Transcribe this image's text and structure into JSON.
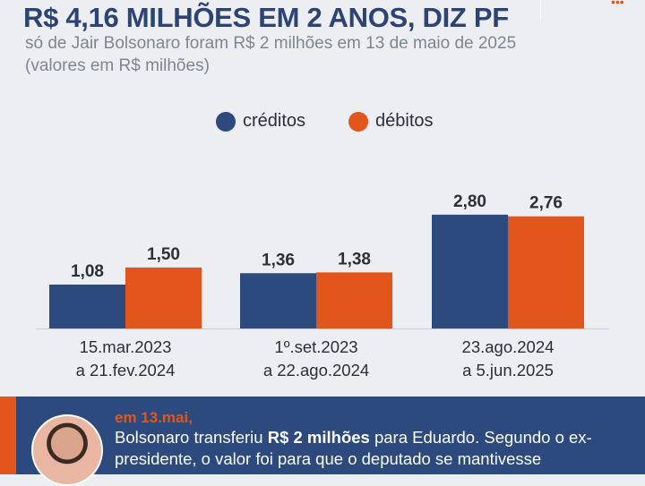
{
  "header": {
    "title": "R$ 4,16 MILHÕES EM 2 ANOS, DIZ PF",
    "subtitle": "só de Jair Bolsonaro foram R$ 2 milhões em 13 de maio de 2025 (valores em R$ milhões)"
  },
  "chart_data": {
    "type": "bar",
    "categories": [
      [
        "15.mar.2023",
        "a 21.fev.2024"
      ],
      [
        "1º.set.2023",
        "a 22.ago.2024"
      ],
      [
        "23.ago.2024",
        "a 5.jun.2025"
      ]
    ],
    "series": [
      {
        "name": "créditos",
        "color": "#2c4a7e",
        "values": [
          1.08,
          1.36,
          2.8
        ],
        "labels": [
          "1,08",
          "1,36",
          "2,80"
        ]
      },
      {
        "name": "débitos",
        "color": "#e2561b",
        "values": [
          1.5,
          1.38,
          2.76
        ],
        "labels": [
          "1,50",
          "1,38",
          "2,76"
        ]
      }
    ],
    "legend": "top",
    "grid": false
  },
  "callout": {
    "date": "em 13.mai,",
    "text_pre": "Bolsonaro transferiu ",
    "text_bold": "R$ 2 milhões",
    "text_post": " para Eduardo. Segundo o ex-presidente, o valor foi para que o deputado se mantivesse"
  }
}
